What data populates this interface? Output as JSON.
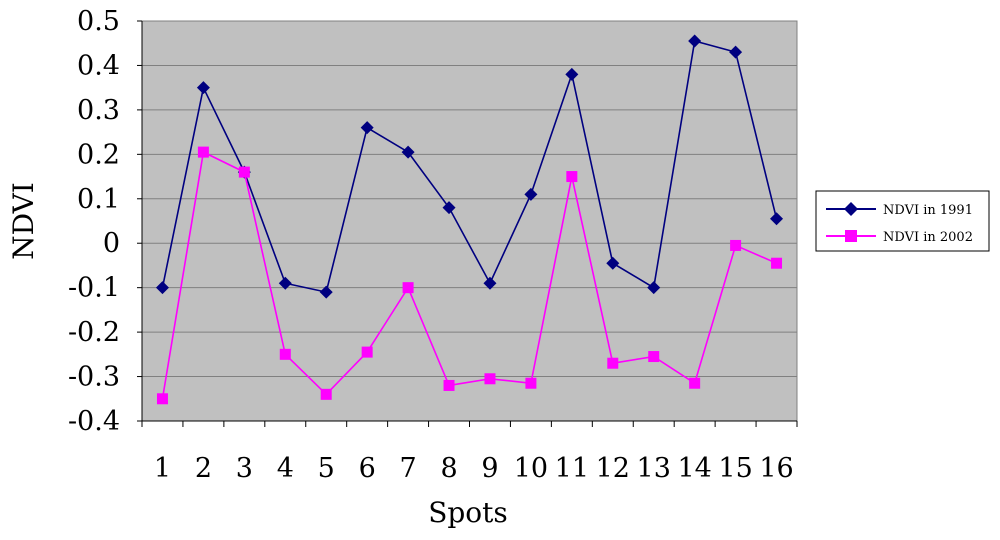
{
  "chart_data": {
    "type": "line",
    "xlabel": "Spots",
    "ylabel": "NDVI",
    "categories": [
      "1",
      "2",
      "3",
      "4",
      "5",
      "6",
      "7",
      "8",
      "9",
      "10",
      "11",
      "12",
      "13",
      "14",
      "15",
      "16"
    ],
    "ylim": [
      -0.4,
      0.5
    ],
    "yticks": [
      0.5,
      0.4,
      0.3,
      0.2,
      0.1,
      0,
      -0.1,
      -0.2,
      -0.3,
      -0.4
    ],
    "ytick_labels": [
      "0.5",
      "0.4",
      "0.3",
      "0.2",
      "0.1",
      "0",
      "-0.1",
      "-0.2",
      "-0.3",
      "-0.4"
    ],
    "grid": true,
    "plot_background": "#c0c0c0",
    "legend_position": "right",
    "series": [
      {
        "name": "NDVI in 1991",
        "color": "#000080",
        "marker": "diamond",
        "values": [
          -0.1,
          0.35,
          0.16,
          -0.09,
          -0.11,
          0.26,
          0.205,
          0.08,
          -0.09,
          0.11,
          0.38,
          -0.045,
          -0.1,
          0.455,
          0.43,
          0.055
        ]
      },
      {
        "name": "NDVI in 2002",
        "color": "#ff00ff",
        "marker": "square",
        "values": [
          -0.35,
          0.205,
          0.16,
          -0.25,
          -0.34,
          -0.245,
          -0.1,
          -0.32,
          -0.305,
          -0.315,
          0.15,
          -0.27,
          -0.255,
          -0.315,
          -0.005,
          -0.045
        ]
      }
    ]
  }
}
